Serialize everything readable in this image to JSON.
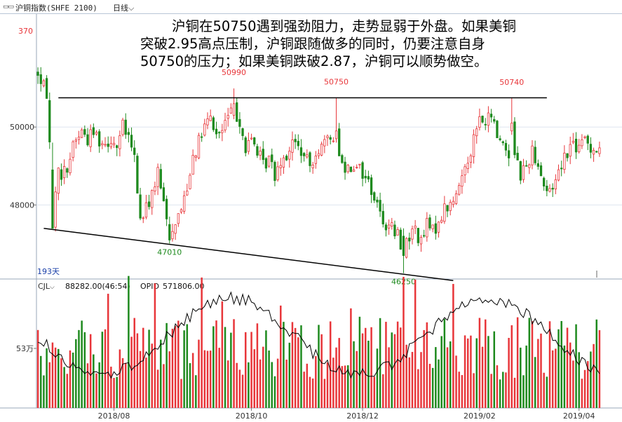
{
  "header": {
    "icon": "panel-toggle-icon",
    "title": "沪铜指数(SHFE 2100)",
    "period": "日线",
    "period_icon": "chevron-down-icon"
  },
  "annotation": {
    "line1": "沪铜在50750遇到强劲阻力，走势显弱于外盘。如果美铜",
    "line2": "突破2.95高点压制，沪铜跟随做多的同时，仍要注意自身",
    "line3": "50750的压力；如果美铜跌破2.87，沪铜可以顺势做空。"
  },
  "colors": {
    "up": "#e8363a",
    "down": "#1e8a1e",
    "line": "#000000",
    "axis_text": "#333333",
    "grid": "#dfe6ef"
  },
  "chart_data": [
    {
      "type": "candlestick",
      "ylim": [
        46100,
        52900
      ],
      "yticks": [
        48000,
        50000
      ],
      "ytick_labels": [
        "48000",
        "50000"
      ],
      "top_label": "370",
      "xlabels": [
        "2018/08",
        "2018/10",
        "2018/12",
        "2019/02",
        "2019/04"
      ],
      "bars_label": "193天",
      "num_bars": 193,
      "resistance": {
        "value": 50750,
        "from": 7,
        "to": 174
      },
      "support": {
        "from": [
          2,
          47400
        ],
        "to": [
          142,
          46060
        ]
      },
      "annotations": [
        {
          "i": 67,
          "value": 50990,
          "text": "50990",
          "pos": "above",
          "color": "#e8363a"
        },
        {
          "i": 102,
          "value": 50750,
          "text": "50750",
          "pos": "above",
          "color": "#e8363a"
        },
        {
          "i": 162,
          "value": 50740,
          "text": "50740",
          "pos": "above",
          "color": "#e8363a"
        },
        {
          "i": 45,
          "value": 47010,
          "text": "47010",
          "pos": "below",
          "color": "#1e8a1e"
        },
        {
          "i": 125,
          "value": 46250,
          "text": "46250",
          "pos": "below",
          "color": "#1e8a1e"
        }
      ],
      "path": [
        [
          0,
          51400
        ],
        [
          1,
          51100
        ],
        [
          3,
          50900
        ],
        [
          5,
          48200
        ],
        [
          7,
          48800
        ],
        [
          10,
          48900
        ],
        [
          12,
          49600
        ],
        [
          15,
          49900
        ],
        [
          17,
          49700
        ],
        [
          19,
          49900
        ],
        [
          22,
          49600
        ],
        [
          25,
          49700
        ],
        [
          27,
          49500
        ],
        [
          29,
          50000
        ],
        [
          31,
          49700
        ],
        [
          33,
          49200
        ],
        [
          35,
          47600
        ],
        [
          37,
          47900
        ],
        [
          39,
          48300
        ],
        [
          41,
          48800
        ],
        [
          43,
          48000
        ],
        [
          45,
          47300
        ],
        [
          47,
          47600
        ],
        [
          49,
          47900
        ],
        [
          51,
          48500
        ],
        [
          53,
          49300
        ],
        [
          55,
          49600
        ],
        [
          57,
          50000
        ],
        [
          59,
          50200
        ],
        [
          61,
          49800
        ],
        [
          63,
          49900
        ],
        [
          65,
          50300
        ],
        [
          67,
          50400
        ],
        [
          69,
          50200
        ],
        [
          71,
          49400
        ],
        [
          73,
          49700
        ],
        [
          75,
          49400
        ],
        [
          77,
          49000
        ],
        [
          79,
          49200
        ],
        [
          81,
          48800
        ],
        [
          83,
          49200
        ],
        [
          85,
          49300
        ],
        [
          87,
          49600
        ],
        [
          89,
          49500
        ],
        [
          91,
          49200
        ],
        [
          93,
          49000
        ],
        [
          95,
          49400
        ],
        [
          97,
          49500
        ],
        [
          99,
          49600
        ],
        [
          101,
          49800
        ],
        [
          103,
          49200
        ],
        [
          105,
          49000
        ],
        [
          107,
          49000
        ],
        [
          109,
          49100
        ],
        [
          111,
          48800
        ],
        [
          113,
          48600
        ],
        [
          115,
          48200
        ],
        [
          117,
          47800
        ],
        [
          119,
          47500
        ],
        [
          121,
          47400
        ],
        [
          123,
          47200
        ],
        [
          125,
          46900
        ],
        [
          127,
          47200
        ],
        [
          129,
          47400
        ],
        [
          131,
          47000
        ],
        [
          133,
          47500
        ],
        [
          135,
          47300
        ],
        [
          137,
          47600
        ],
        [
          139,
          47900
        ],
        [
          141,
          48000
        ],
        [
          143,
          48200
        ],
        [
          145,
          48800
        ],
        [
          147,
          49200
        ],
        [
          149,
          49700
        ],
        [
          151,
          50200
        ],
        [
          153,
          50100
        ],
        [
          155,
          50300
        ],
        [
          157,
          49800
        ],
        [
          159,
          49600
        ],
        [
          161,
          49300
        ],
        [
          163,
          49400
        ],
        [
          165,
          48800
        ],
        [
          167,
          49000
        ],
        [
          169,
          49400
        ],
        [
          171,
          49100
        ],
        [
          173,
          48500
        ],
        [
          175,
          48300
        ],
        [
          177,
          48700
        ],
        [
          179,
          49100
        ],
        [
          181,
          49400
        ],
        [
          183,
          49600
        ],
        [
          185,
          49400
        ],
        [
          187,
          49700
        ],
        [
          189,
          49500
        ],
        [
          192,
          49400
        ]
      ],
      "overrides": {
        "5": [
          48900,
          47400,
          49600,
          47400
        ],
        "45": [
          47500,
          47100,
          47700,
          47010
        ],
        "67": [
          50300,
          50600,
          50990,
          50200
        ],
        "102": [
          49700,
          49900,
          50750,
          49600
        ],
        "125": [
          47200,
          46700,
          47400,
          46250
        ],
        "162": [
          49900,
          50100,
          50740,
          49800
        ]
      }
    },
    {
      "type": "bar+line",
      "label": "CJL",
      "value": "88282.00(46:54)",
      "opid_label": "OPID",
      "opid_value": "571806.00",
      "ytick_labels": [
        "53万"
      ]
    }
  ]
}
